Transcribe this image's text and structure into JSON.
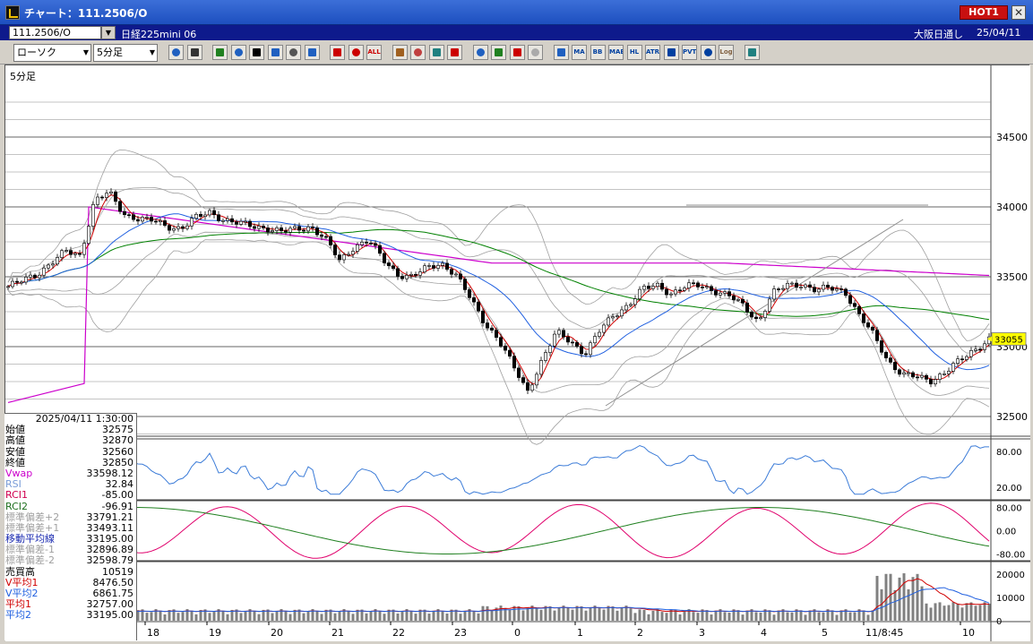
{
  "window": {
    "title": "チャート：111.2506/O",
    "hot_label": "HOT1",
    "close_glyph": "✕"
  },
  "info": {
    "symbol": "111.2506/O",
    "instrument": "日経225mini 06",
    "session": "大阪日通し",
    "date": "25/04/11"
  },
  "toolbar": {
    "chart_type": "ローソク",
    "interval": "5分足",
    "icons": [
      "search-icon",
      "crosshair-icon",
      "pen-icon",
      "trendline-icon",
      "select-icon",
      "parallel-line-icon",
      "note-icon",
      "trash-icon",
      "zoom-in-icon",
      "zoom-out-icon",
      "all-icon",
      "settings-icon",
      "wrench-icon",
      "palette-icon",
      "order-icon",
      "magnifier-icon",
      "calendar-icon",
      "flag-icon",
      "disabled-icon",
      "candles-icon",
      "ma-icon",
      "bb-icon",
      "mae-icon",
      "hl-icon",
      "atr-icon",
      "ichimoku-icon",
      "pvt-icon",
      "frame-icon",
      "log-icon",
      "export-icon"
    ],
    "icon_labels": {
      "all": "ALL",
      "ma": "MA",
      "bb": "BB",
      "mae": "MAE",
      "hl": "HL",
      "atr": "ATR",
      "pvt": "PVT",
      "log": "Log"
    }
  },
  "chart": {
    "interval_label": "5分足",
    "last_price": "33055",
    "price_ticks": [
      "34500",
      "34000",
      "33500",
      "33000",
      "32500"
    ],
    "rsi_ticks": [
      "80.00",
      "20.00"
    ],
    "rci_ticks": [
      "80.00",
      "0.00",
      "-80.00"
    ],
    "vol_ticks": [
      "20000",
      "10000",
      "0"
    ],
    "x_labels": [
      "18",
      "19",
      "20",
      "21",
      "22",
      "23",
      "0",
      "1",
      "2",
      "3",
      "4",
      "5",
      "11/8:45",
      "10"
    ]
  },
  "colors": {
    "vwap": "#cc00cc",
    "ma_short": "#d00000",
    "ma_mid": "#2060e0",
    "ma_long": "#008000",
    "band": "#a0a0a0",
    "rsi": "#3c7cd8",
    "rci1": "#e0006c",
    "rci2": "#208020",
    "volume": "#808080",
    "vol_ma1": "#d00000",
    "vol_ma2": "#2060e0"
  },
  "datapanel": {
    "datetime": "2025/04/11 1:30:00",
    "rows": [
      {
        "label": "始値",
        "value": "32575",
        "color": "#000"
      },
      {
        "label": "高値",
        "value": "32870",
        "color": "#000"
      },
      {
        "label": "安値",
        "value": "32560",
        "color": "#000"
      },
      {
        "label": "終値",
        "value": "32850",
        "color": "#000"
      },
      {
        "label": "Vwap",
        "value": "33598.12",
        "color": "#cc00cc"
      },
      {
        "label": "RSI",
        "value": "32.84",
        "color": "#7a9cd8"
      },
      {
        "label": "RCI1",
        "value": "-85.00",
        "color": "#d00050"
      },
      {
        "label": "RCI2",
        "value": "-96.91",
        "color": "#207020"
      },
      {
        "label": "標準偏差+2",
        "value": "33791.21",
        "color": "#a0a0a0"
      },
      {
        "label": "標準偏差+1",
        "value": "33493.11",
        "color": "#a0a0a0"
      },
      {
        "label": "移動平均線",
        "value": "33195.00",
        "color": "#1a2ab0"
      },
      {
        "label": "標準偏差-1",
        "value": "32896.89",
        "color": "#a0a0a0"
      },
      {
        "label": "標準偏差-2",
        "value": "32598.79",
        "color": "#a0a0a0"
      },
      {
        "label": "売買高",
        "value": "10519",
        "color": "#000"
      },
      {
        "label": "V平均1",
        "value": "8476.50",
        "color": "#d00000"
      },
      {
        "label": "V平均2",
        "value": "6861.75",
        "color": "#2060e0"
      },
      {
        "label": "平均1",
        "value": "32757.00",
        "color": "#d00000"
      },
      {
        "label": "平均2",
        "value": "33195.00",
        "color": "#2060e0"
      }
    ]
  },
  "chart_data": {
    "type": "candlestick",
    "x_labels": [
      "18",
      "19",
      "20",
      "21",
      "22",
      "23",
      "0",
      "1",
      "2",
      "3",
      "4",
      "5",
      "11/8:45",
      "10"
    ],
    "y_ticks": [
      34500,
      34000,
      33500,
      33000,
      32500
    ],
    "last_price": 33055,
    "approx_close_path": [
      33430,
      33470,
      33520,
      33600,
      33680,
      33650,
      34050,
      34100,
      33950,
      33920,
      33900,
      33860,
      33850,
      33920,
      33960,
      33910,
      33880,
      33860,
      33850,
      33820,
      33840,
      33860,
      33770,
      33610,
      33720,
      33760,
      33620,
      33520,
      33500,
      33560,
      33600,
      33520,
      33350,
      33180,
      33050,
      32860,
      32680,
      32900,
      33100,
      33040,
      32950,
      33110,
      33230,
      33300,
      33410,
      33440,
      33380,
      33430,
      33440,
      33400,
      33360,
      33290,
      33180,
      33380,
      33440,
      33450,
      33400,
      33420,
      33400,
      33220,
      33080,
      32900,
      32800,
      32780,
      32760,
      32820,
      32900,
      32980,
      33055
    ]
  }
}
